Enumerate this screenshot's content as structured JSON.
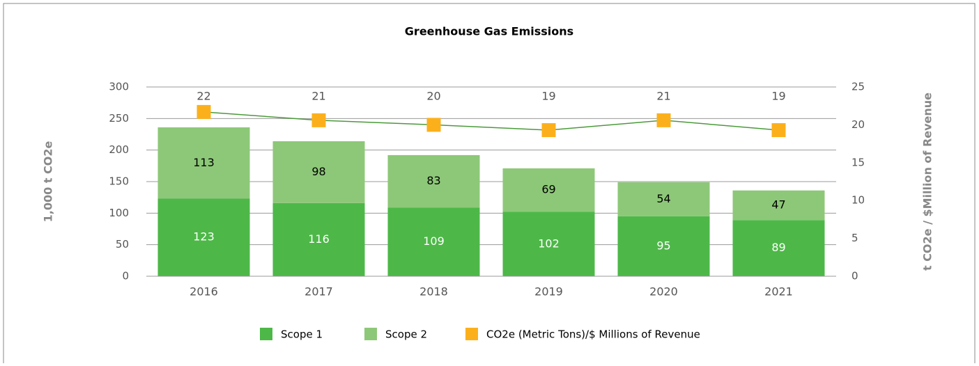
{
  "chart_data": {
    "type": "bar",
    "stacked": true,
    "title": "Greenhouse Gas Emissions",
    "ylabel": "1,000 t CO2e",
    "y2label": "t CO2e / $Million of Revenue",
    "categories": [
      "2016",
      "2017",
      "2018",
      "2019",
      "2020",
      "2021"
    ],
    "series": [
      {
        "name": "Scope 1",
        "color": "#4db848",
        "values": [
          123,
          116,
          109,
          102,
          95,
          89
        ]
      },
      {
        "name": "Scope 2",
        "color": "#8dc878",
        "values": [
          113,
          98,
          83,
          69,
          54,
          47
        ]
      },
      {
        "name": "CO2e (Metric Tons)/$ Millions of Revenue",
        "type": "line",
        "axis": "y2",
        "color": "#fbb01b",
        "line_color": "#4a9a3a",
        "values": [
          21.7,
          20.6,
          20.0,
          19.3,
          20.6,
          19.3
        ],
        "value_labels": [
          "22",
          "21",
          "20",
          "19",
          "21",
          "19"
        ]
      }
    ],
    "ylim": [
      0,
      300
    ],
    "yticks": [
      0,
      50,
      100,
      150,
      200,
      250,
      300
    ],
    "y2lim": [
      0,
      25
    ],
    "y2ticks": [
      0,
      5,
      10,
      15,
      20,
      25
    ],
    "grid": true,
    "legend": "bottom"
  }
}
